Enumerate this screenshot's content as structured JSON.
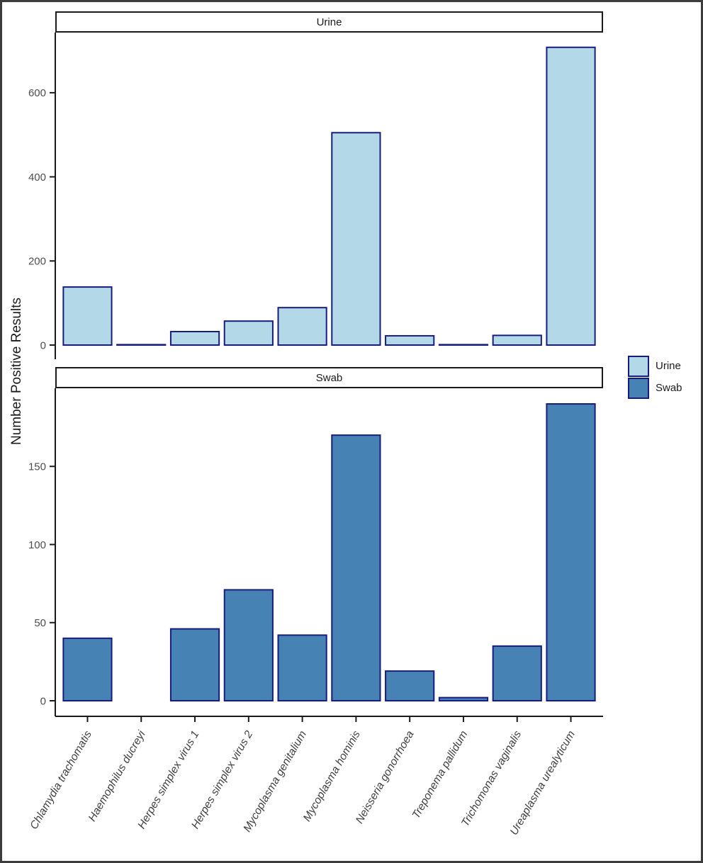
{
  "chart_data": {
    "type": "bar",
    "ylabel": "Number Positive Results",
    "categories": [
      "Chlamydia trachomatis",
      "Haemophilus ducreyi",
      "Herpes simplex virus 1",
      "Herpes simplex virus 2",
      "Mycoplasma genitalium",
      "Mycoplasma hominis",
      "Neisseria gonorrhoea",
      "Treponema pallidum",
      "Trichomonas vaginalis",
      "Ureaplasma urealyticum"
    ],
    "facets": [
      {
        "label": "Urine",
        "color": "#b3d9e8",
        "yticks": [
          0,
          200,
          400,
          600
        ],
        "ylim": [
          0,
          743
        ],
        "values": [
          138,
          1,
          32,
          57,
          89,
          505,
          22,
          1,
          23,
          708
        ]
      },
      {
        "label": "Swab",
        "color": "#4682b4",
        "yticks": [
          0,
          50,
          100,
          150
        ],
        "ylim": [
          0,
          200
        ],
        "values": [
          40,
          null,
          46,
          71,
          42,
          170,
          19,
          2,
          35,
          190
        ]
      }
    ],
    "bar_outline": "#181d7d",
    "legend": {
      "position": "right",
      "items": [
        "Urine",
        "Swab"
      ]
    },
    "grid": false
  }
}
